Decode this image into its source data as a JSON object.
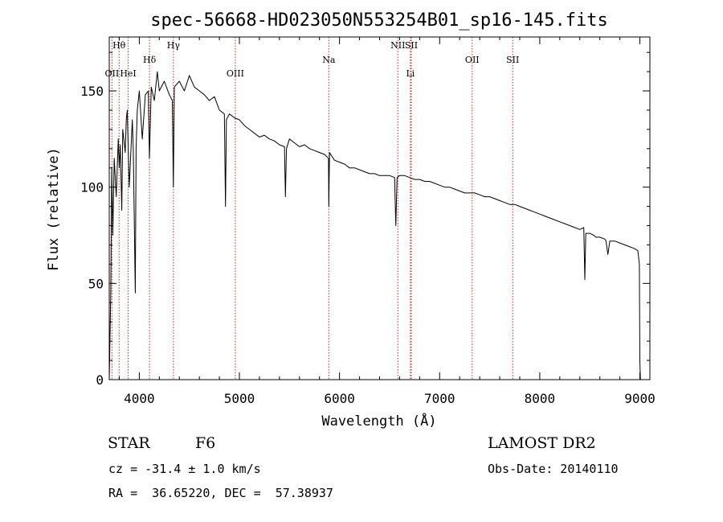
{
  "chart_data": {
    "type": "line",
    "title": "spec-56668-HD023050N553254B01_sp16-145.fits",
    "xlabel": "Wavelength (Å)",
    "ylabel": "Flux (relative)",
    "xlim": [
      3700,
      9100
    ],
    "ylim": [
      0,
      178
    ],
    "xticks": [
      4000,
      5000,
      6000,
      7000,
      8000,
      9000
    ],
    "yticks": [
      0,
      50,
      100,
      150
    ],
    "grid": false,
    "line_color": "#000000",
    "marker_line_color": "#cc2222",
    "spectrum": {
      "x": [
        3700,
        3715,
        3725,
        3735,
        3750,
        3770,
        3790,
        3800,
        3810,
        3825,
        3835,
        3860,
        3870,
        3880,
        3900,
        3930,
        3940,
        3960,
        3968,
        3980,
        4000,
        4030,
        4060,
        4090,
        4101,
        4120,
        4150,
        4180,
        4200,
        4250,
        4300,
        4330,
        4340,
        4350,
        4400,
        4450,
        4500,
        4550,
        4600,
        4650,
        4700,
        4750,
        4800,
        4850,
        4861,
        4870,
        4900,
        4950,
        5000,
        5050,
        5100,
        5150,
        5200,
        5250,
        5300,
        5350,
        5400,
        5450,
        5460,
        5470,
        5500,
        5550,
        5600,
        5650,
        5700,
        5750,
        5800,
        5850,
        5890,
        5893,
        5900,
        5950,
        6000,
        6050,
        6100,
        6150,
        6200,
        6250,
        6300,
        6350,
        6400,
        6450,
        6500,
        6550,
        6562,
        6575,
        6600,
        6650,
        6700,
        6750,
        6800,
        6850,
        6900,
        6950,
        7000,
        7050,
        7100,
        7150,
        7200,
        7250,
        7300,
        7350,
        7400,
        7450,
        7500,
        7550,
        7600,
        7650,
        7700,
        7750,
        7800,
        7850,
        7900,
        7950,
        8000,
        8050,
        8100,
        8150,
        8200,
        8250,
        8300,
        8350,
        8400,
        8440,
        8450,
        8460,
        8500,
        8540,
        8560,
        8600,
        8650,
        8662,
        8680,
        8700,
        8750,
        8800,
        8850,
        8900,
        8950,
        8980,
        8995,
        9000,
        9005
      ],
      "y": [
        0,
        45,
        110,
        75,
        115,
        95,
        125,
        110,
        122,
        88,
        130,
        118,
        135,
        140,
        100,
        135,
        120,
        45,
        120,
        140,
        150,
        125,
        148,
        150,
        115,
        152,
        145,
        160,
        150,
        155,
        148,
        145,
        100,
        152,
        155,
        150,
        158,
        152,
        150,
        148,
        145,
        147,
        140,
        138,
        90,
        135,
        138,
        136,
        135,
        132,
        130,
        128,
        126,
        127,
        125,
        124,
        122,
        121,
        95,
        120,
        125,
        123,
        121,
        122,
        120,
        119,
        118,
        117,
        115,
        90,
        118,
        114,
        113,
        112,
        110,
        110,
        109,
        108,
        107,
        107,
        106,
        106,
        106,
        105,
        80,
        105,
        106,
        106,
        105,
        104,
        104,
        103,
        103,
        102,
        101,
        100,
        100,
        99,
        98,
        97,
        97,
        97,
        96,
        95,
        95,
        94,
        93,
        92,
        91,
        91,
        90,
        89,
        88,
        87,
        86,
        85,
        84,
        83,
        82,
        81,
        80,
        79,
        78,
        79,
        52,
        76,
        76,
        75,
        74,
        74,
        73,
        72,
        65,
        72,
        72,
        71,
        70,
        69,
        68,
        67,
        60,
        10,
        0
      ]
    },
    "annotations": [
      {
        "label": "Hθ",
        "x": 3798,
        "row": 0
      },
      {
        "label": "OII",
        "x": 3727,
        "row": 2
      },
      {
        "label": "HeI",
        "x": 3889,
        "row": 2
      },
      {
        "label": "Hδ",
        "x": 4102,
        "row": 1
      },
      {
        "label": "Hγ",
        "x": 4341,
        "row": 0
      },
      {
        "label": "OIII",
        "x": 4959,
        "row": 2
      },
      {
        "label": "Na",
        "x": 5893,
        "row": 1
      },
      {
        "label": "NII",
        "x": 6583,
        "row": 0
      },
      {
        "label": "SII",
        "x": 6717,
        "row": 0
      },
      {
        "label": "Li",
        "x": 6708,
        "row": 2
      },
      {
        "label": "OII",
        "x": 7325,
        "row": 1
      },
      {
        "label": "SII",
        "x": 7730,
        "row": 1
      }
    ]
  },
  "info": {
    "class_label": "STAR",
    "subclass": "F6",
    "survey": "LAMOST DR2",
    "cz": "cz = -31.4 ± 1.0 km/s",
    "obs_date": "Obs-Date: 20140110",
    "coords": "RA =  36.65220, DEC =  57.38937"
  }
}
